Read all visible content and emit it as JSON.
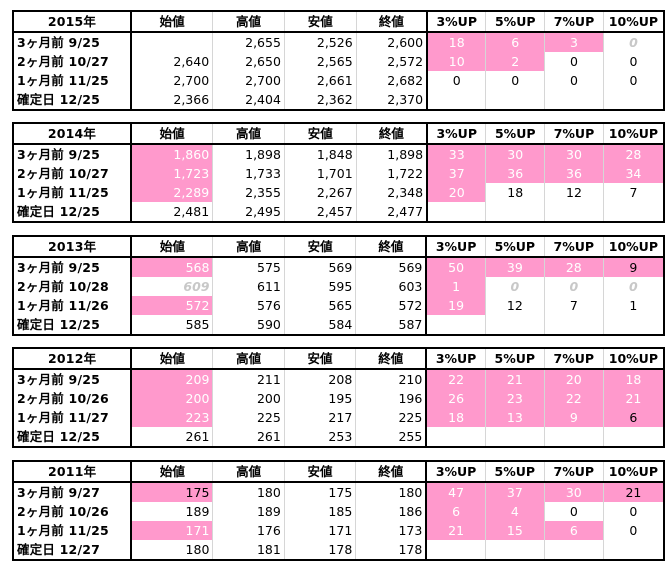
{
  "headers": {
    "open": "始値",
    "high": "高値",
    "low": "安値",
    "close": "終値",
    "p3": "3%UP",
    "p5": "5%UP",
    "p7": "7%UP",
    "p10": "10%UP"
  },
  "blocks": [
    {
      "year": "2015年",
      "rows": [
        {
          "label": "3ヶ月前  9/25",
          "cells": [
            {
              "v": ""
            },
            {
              "v": "2,655"
            },
            {
              "v": "2,526"
            },
            {
              "v": "2,600"
            },
            {
              "v": "18",
              "hl": true
            },
            {
              "v": "6",
              "hl": true
            },
            {
              "v": "3",
              "hl": true
            },
            {
              "v": "0",
              "gray": true
            }
          ]
        },
        {
          "label": "2ヶ月前  10/27",
          "cells": [
            {
              "v": "2,640"
            },
            {
              "v": "2,650"
            },
            {
              "v": "2,565"
            },
            {
              "v": "2,572"
            },
            {
              "v": "10",
              "hl": true
            },
            {
              "v": "2",
              "hl": true
            },
            {
              "v": "0"
            },
            {
              "v": "0"
            }
          ]
        },
        {
          "label": "1ヶ月前  11/25",
          "cells": [
            {
              "v": "2,700"
            },
            {
              "v": "2,700"
            },
            {
              "v": "2,661"
            },
            {
              "v": "2,682"
            },
            {
              "v": "0"
            },
            {
              "v": "0"
            },
            {
              "v": "0"
            },
            {
              "v": "0"
            }
          ]
        },
        {
          "label": "確定日    12/25",
          "cells": [
            {
              "v": "2,366"
            },
            {
              "v": "2,404"
            },
            {
              "v": "2,362"
            },
            {
              "v": "2,370"
            },
            {
              "v": ""
            },
            {
              "v": ""
            },
            {
              "v": ""
            },
            {
              "v": ""
            }
          ]
        }
      ]
    },
    {
      "year": "2014年",
      "rows": [
        {
          "label": "3ヶ月前  9/25",
          "cells": [
            {
              "v": "1,860",
              "hl": true
            },
            {
              "v": "1,898"
            },
            {
              "v": "1,848"
            },
            {
              "v": "1,898"
            },
            {
              "v": "33",
              "hl": true
            },
            {
              "v": "30",
              "hl": true
            },
            {
              "v": "30",
              "hl": true
            },
            {
              "v": "28",
              "hl": true
            }
          ]
        },
        {
          "label": "2ヶ月前  10/27",
          "cells": [
            {
              "v": "1,723",
              "hl": true
            },
            {
              "v": "1,733"
            },
            {
              "v": "1,701"
            },
            {
              "v": "1,722"
            },
            {
              "v": "37",
              "hl": true
            },
            {
              "v": "36",
              "hl": true
            },
            {
              "v": "36",
              "hl": true
            },
            {
              "v": "34",
              "hl": true
            }
          ]
        },
        {
          "label": "1ヶ月前  11/25",
          "cells": [
            {
              "v": "2,289",
              "hl": true
            },
            {
              "v": "2,355"
            },
            {
              "v": "2,267"
            },
            {
              "v": "2,348"
            },
            {
              "v": "20",
              "hl": true
            },
            {
              "v": "18"
            },
            {
              "v": "12"
            },
            {
              "v": "7"
            }
          ]
        },
        {
          "label": "確定日    12/25",
          "cells": [
            {
              "v": "2,481"
            },
            {
              "v": "2,495"
            },
            {
              "v": "2,457"
            },
            {
              "v": "2,477"
            },
            {
              "v": ""
            },
            {
              "v": ""
            },
            {
              "v": ""
            },
            {
              "v": ""
            }
          ]
        }
      ]
    },
    {
      "year": "2013年",
      "rows": [
        {
          "label": "3ヶ月前  9/25",
          "cells": [
            {
              "v": "568",
              "hl": true
            },
            {
              "v": "575"
            },
            {
              "v": "569"
            },
            {
              "v": "569"
            },
            {
              "v": "50",
              "hl": true
            },
            {
              "v": "39",
              "hl": true
            },
            {
              "v": "28",
              "hl": true
            },
            {
              "v": "9",
              "hlDark": true
            }
          ]
        },
        {
          "label": "2ヶ月前  10/28",
          "cells": [
            {
              "v": "609",
              "gray": true
            },
            {
              "v": "611"
            },
            {
              "v": "595"
            },
            {
              "v": "603"
            },
            {
              "v": "1",
              "hl": true
            },
            {
              "v": "0",
              "gray": true
            },
            {
              "v": "0",
              "gray": true
            },
            {
              "v": "0",
              "gray": true
            }
          ]
        },
        {
          "label": "1ヶ月前  11/26",
          "cells": [
            {
              "v": "572",
              "hl": true
            },
            {
              "v": "576"
            },
            {
              "v": "565"
            },
            {
              "v": "572"
            },
            {
              "v": "19",
              "hl": true
            },
            {
              "v": "12"
            },
            {
              "v": "7"
            },
            {
              "v": "1"
            }
          ]
        },
        {
          "label": "確定日    12/25",
          "cells": [
            {
              "v": "585"
            },
            {
              "v": "590"
            },
            {
              "v": "584"
            },
            {
              "v": "587"
            },
            {
              "v": ""
            },
            {
              "v": ""
            },
            {
              "v": ""
            },
            {
              "v": ""
            }
          ]
        }
      ]
    },
    {
      "year": "2012年",
      "rows": [
        {
          "label": "3ヶ月前  9/25",
          "cells": [
            {
              "v": "209",
              "hl": true
            },
            {
              "v": "211"
            },
            {
              "v": "208"
            },
            {
              "v": "210"
            },
            {
              "v": "22",
              "hl": true
            },
            {
              "v": "21",
              "hl": true
            },
            {
              "v": "20",
              "hl": true
            },
            {
              "v": "18",
              "hl": true
            }
          ]
        },
        {
          "label": "2ヶ月前  10/26",
          "cells": [
            {
              "v": "200",
              "hl": true
            },
            {
              "v": "200"
            },
            {
              "v": "195"
            },
            {
              "v": "196"
            },
            {
              "v": "26",
              "hl": true
            },
            {
              "v": "23",
              "hl": true
            },
            {
              "v": "22",
              "hl": true
            },
            {
              "v": "21",
              "hl": true
            }
          ]
        },
        {
          "label": "1ヶ月前  11/27",
          "cells": [
            {
              "v": "223",
              "hl": true
            },
            {
              "v": "225"
            },
            {
              "v": "217"
            },
            {
              "v": "225"
            },
            {
              "v": "18",
              "hl": true
            },
            {
              "v": "13",
              "hl": true
            },
            {
              "v": "9",
              "hl": true
            },
            {
              "v": "6",
              "hlDark": true
            }
          ]
        },
        {
          "label": "確定日    12/25",
          "cells": [
            {
              "v": "261"
            },
            {
              "v": "261"
            },
            {
              "v": "253"
            },
            {
              "v": "255"
            },
            {
              "v": ""
            },
            {
              "v": ""
            },
            {
              "v": ""
            },
            {
              "v": ""
            }
          ]
        }
      ]
    },
    {
      "year": "2011年",
      "rows": [
        {
          "label": "3ヶ月前  9/27",
          "cells": [
            {
              "v": "175",
              "hlDark": true
            },
            {
              "v": "180"
            },
            {
              "v": "175"
            },
            {
              "v": "180"
            },
            {
              "v": "47",
              "hl": true
            },
            {
              "v": "37",
              "hl": true
            },
            {
              "v": "30",
              "hl": true
            },
            {
              "v": "21",
              "hlDark": true
            }
          ]
        },
        {
          "label": "2ヶ月前  10/26",
          "cells": [
            {
              "v": "189"
            },
            {
              "v": "189"
            },
            {
              "v": "185"
            },
            {
              "v": "186"
            },
            {
              "v": "6",
              "hl": true
            },
            {
              "v": "4",
              "hl": true
            },
            {
              "v": "0"
            },
            {
              "v": "0"
            }
          ]
        },
        {
          "label": "1ヶ月前  11/25",
          "cells": [
            {
              "v": "171",
              "hl": true
            },
            {
              "v": "176"
            },
            {
              "v": "171"
            },
            {
              "v": "173"
            },
            {
              "v": "21",
              "hl": true
            },
            {
              "v": "15",
              "hl": true
            },
            {
              "v": "6",
              "hl": true
            },
            {
              "v": "0"
            }
          ]
        },
        {
          "label": "確定日    12/27",
          "cells": [
            {
              "v": "180"
            },
            {
              "v": "181"
            },
            {
              "v": "178"
            },
            {
              "v": "178"
            },
            {
              "v": ""
            },
            {
              "v": ""
            },
            {
              "v": ""
            },
            {
              "v": ""
            }
          ]
        }
      ]
    }
  ]
}
